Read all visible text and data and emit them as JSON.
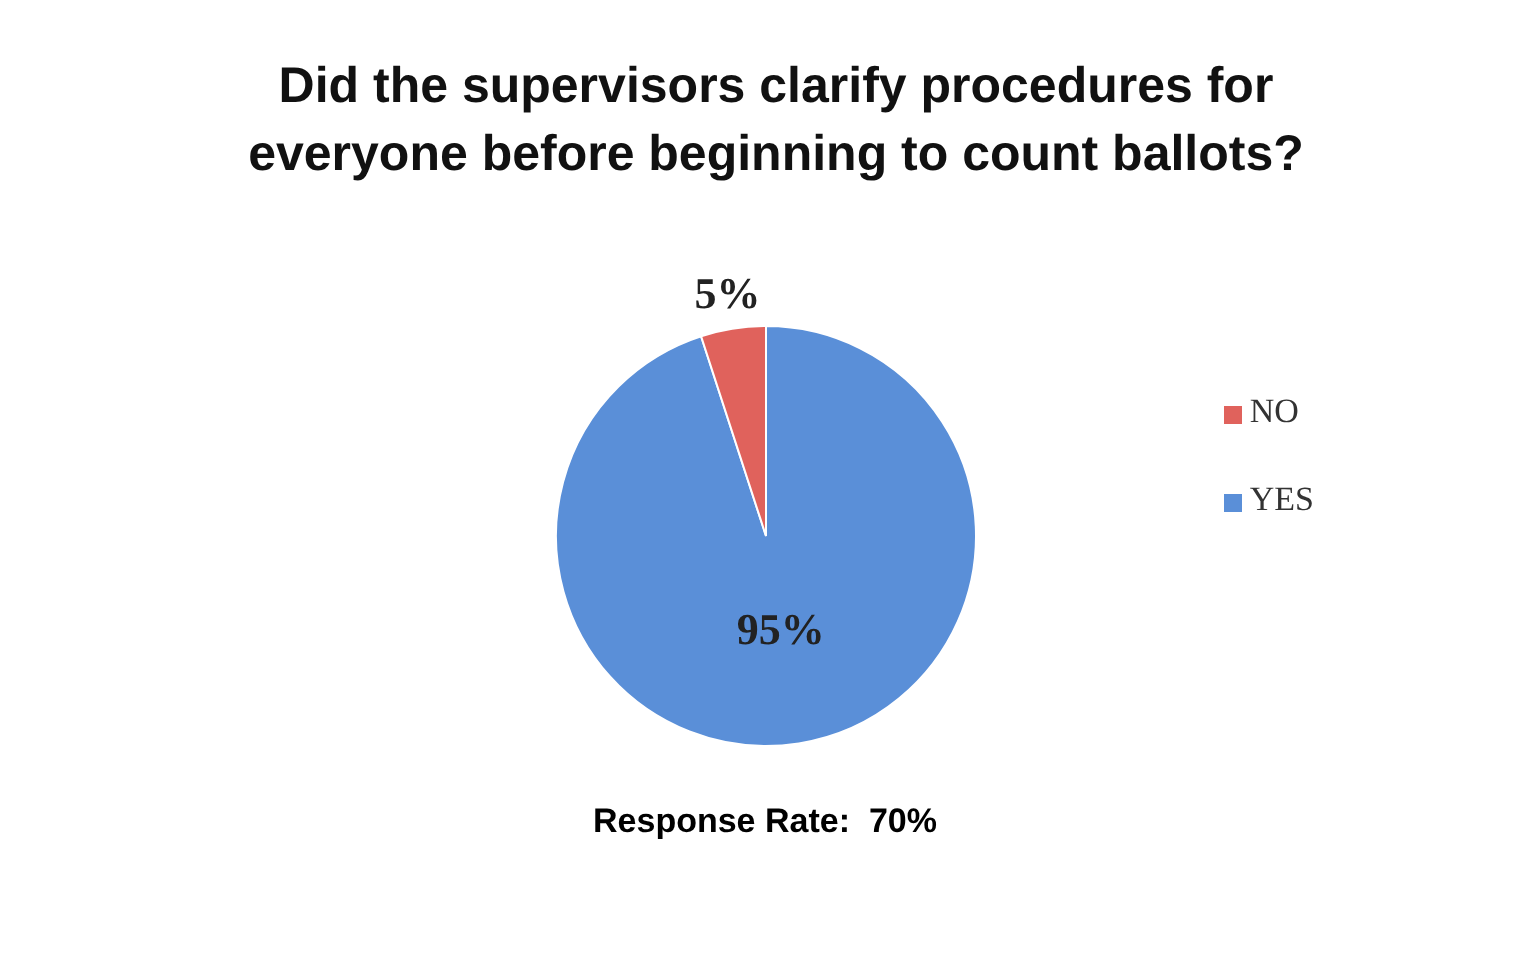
{
  "chart_data": {
    "type": "pie",
    "title": "Did the supervisors clarify procedures for everyone before beginning to count ballots?",
    "categories": [
      "YES",
      "NO"
    ],
    "values": [
      95,
      5
    ],
    "colors": [
      "#5a8fd8",
      "#e0625c"
    ],
    "value_labels": [
      "95%",
      "5%"
    ],
    "legend": "right",
    "annotations": [
      "Response Rate:  70%"
    ]
  }
}
